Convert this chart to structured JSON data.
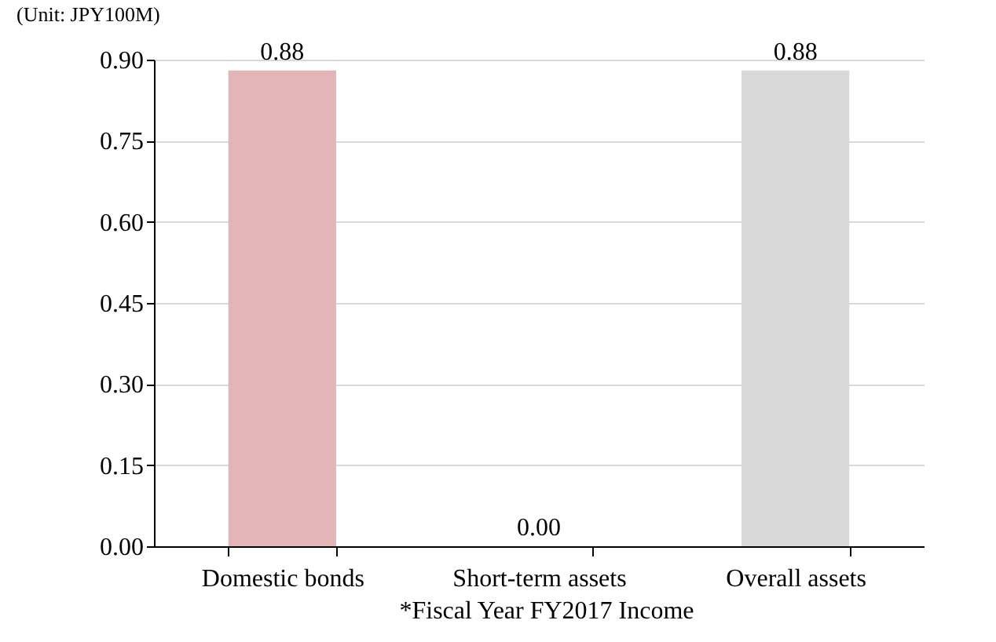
{
  "chart_data": {
    "type": "bar",
    "ylabel": "(Unit: JPY100M)",
    "categories": [
      "Domestic bonds",
      "Short-term assets",
      "Overall assets"
    ],
    "values": [
      0.88,
      0.0,
      0.88
    ],
    "colors": [
      "#e4b5b6",
      "#e4b5b6",
      "#d9d9d9"
    ],
    "value_labels": [
      "0.88",
      "0.00",
      "0.88"
    ],
    "ylim": [
      0,
      0.9
    ],
    "yticks": [
      {
        "value": 0,
        "label": "0.00"
      },
      0.15,
      {
        "value": 0.3,
        "label": "0.30"
      },
      0.45,
      {
        "value": 0.6,
        "label": "0.60"
      },
      0.75,
      {
        "value": 0.9,
        "label": "0.90"
      }
    ],
    "grid": "y",
    "annotations": [
      "*Fiscal Year FY2017 Income"
    ]
  }
}
